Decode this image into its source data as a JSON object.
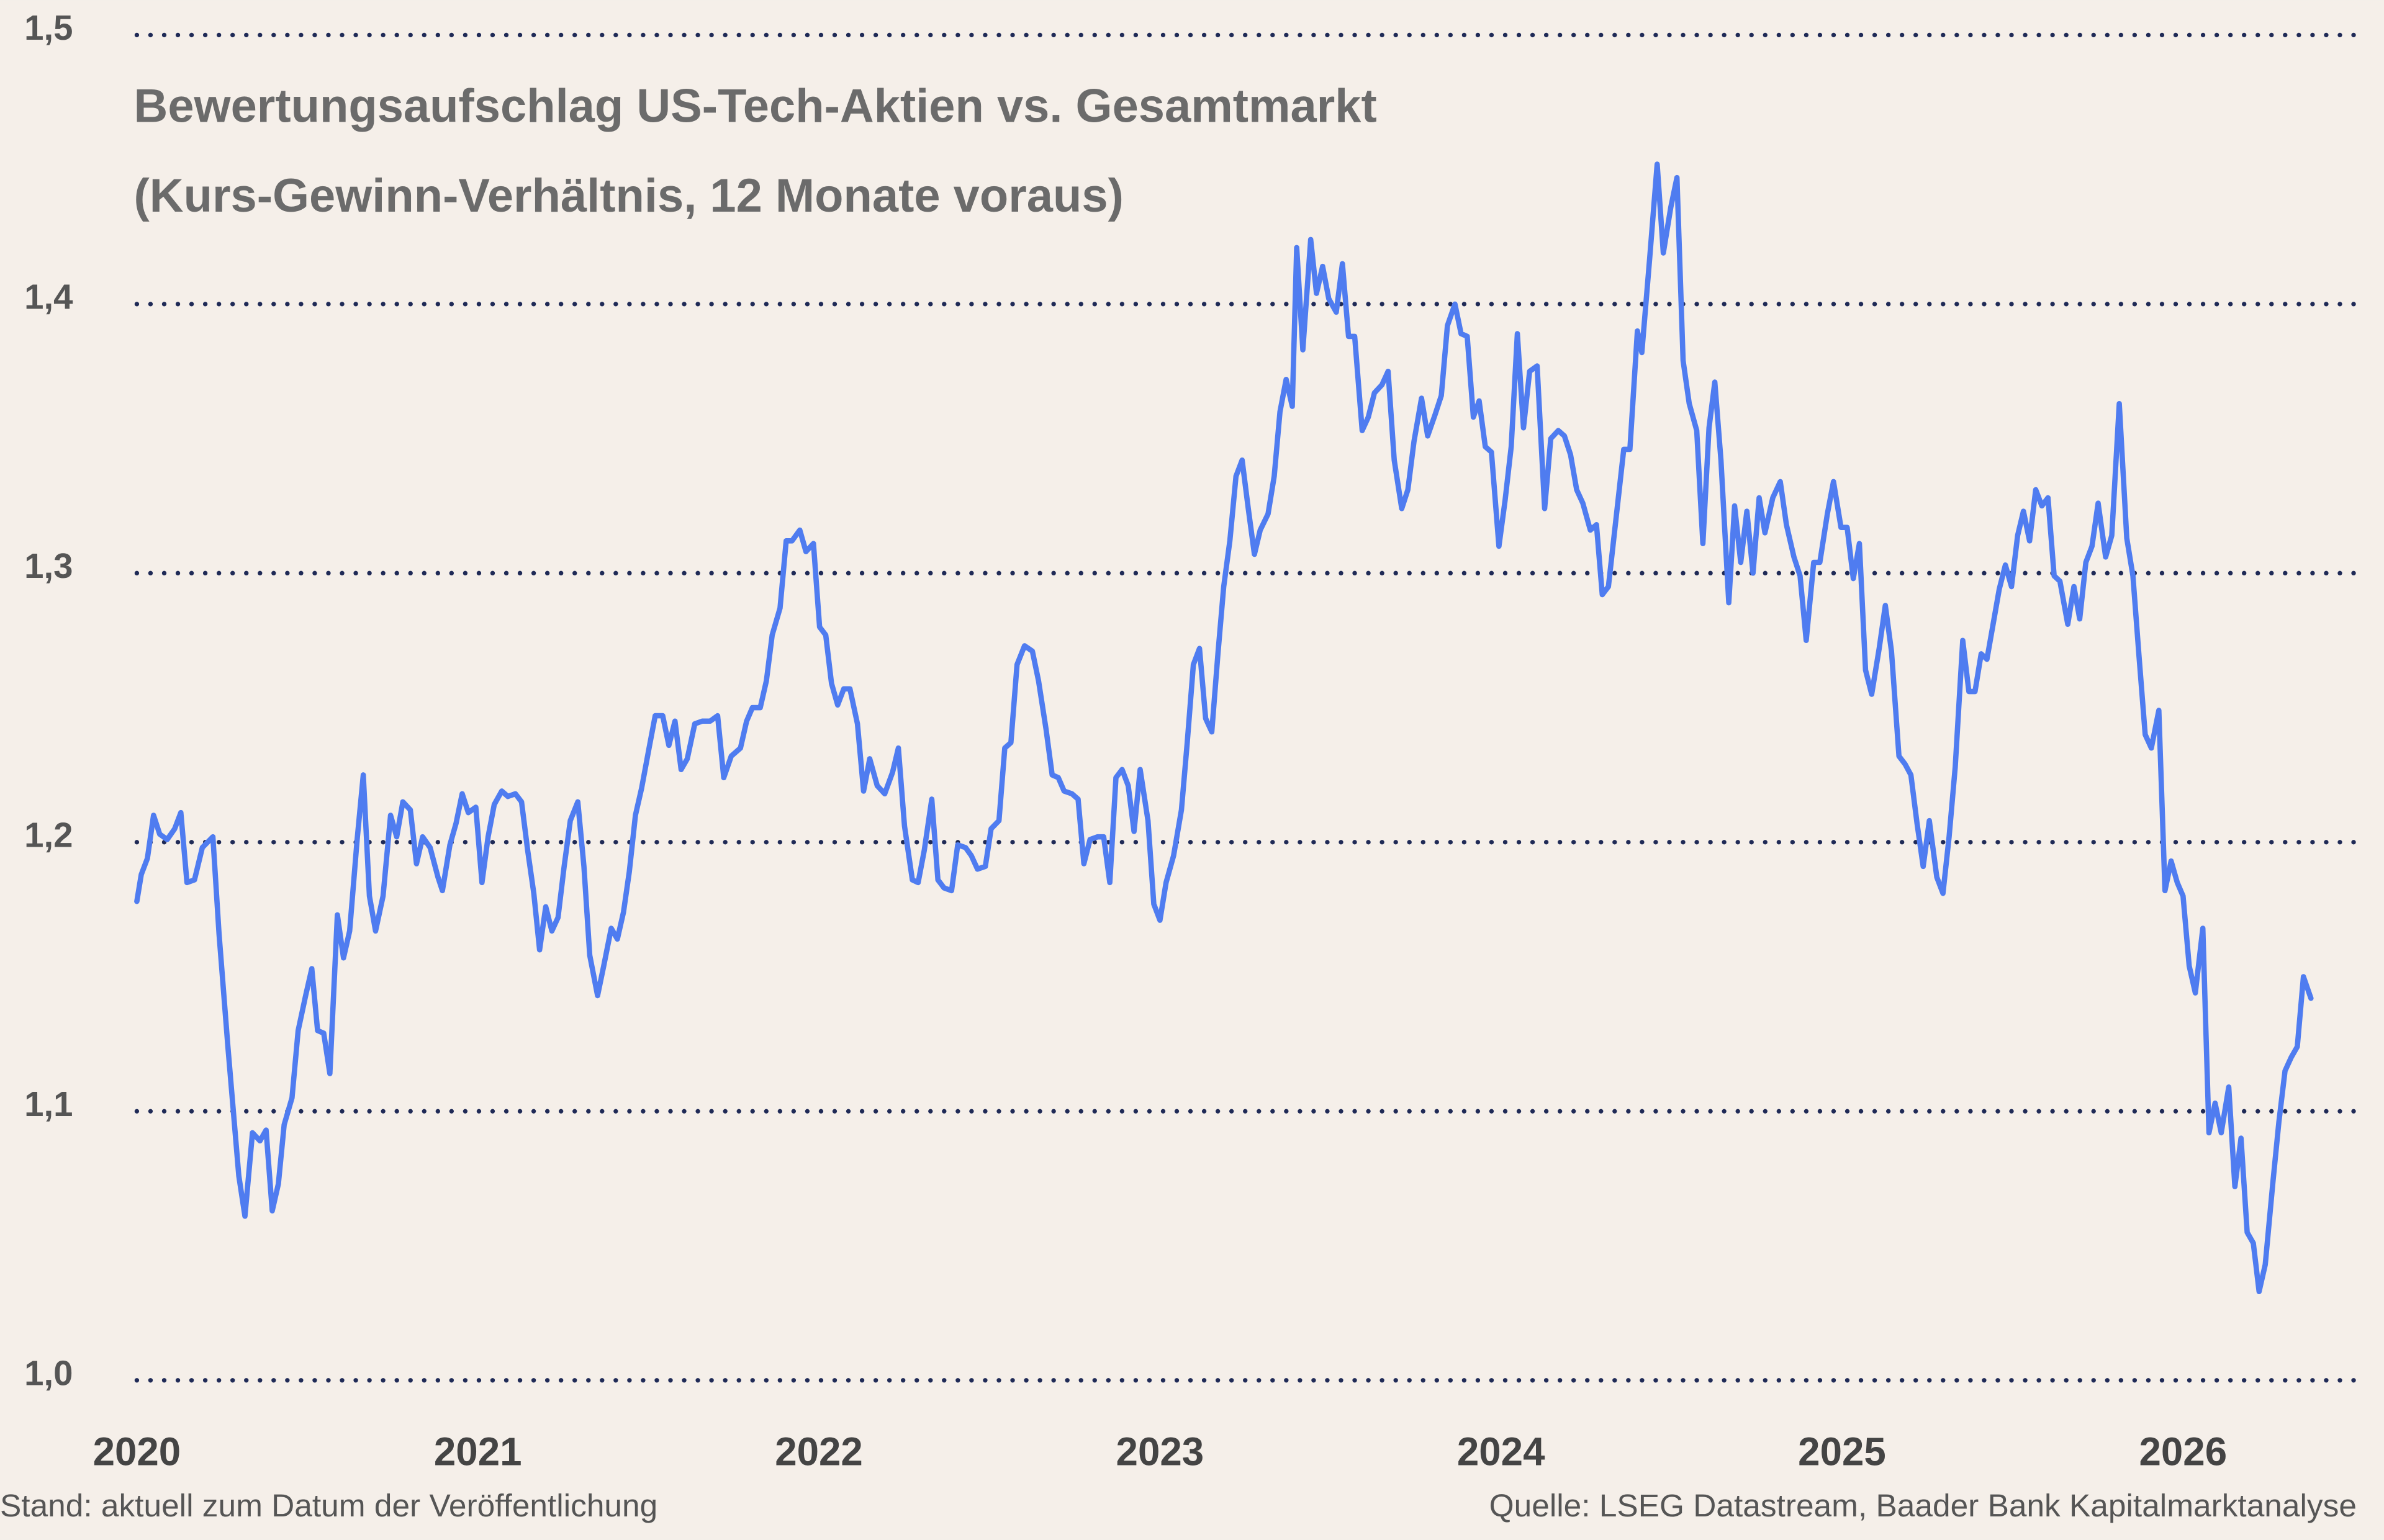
{
  "chart_data": {
    "type": "line",
    "title": "Bewertungsaufschlag US-Tech-Aktien vs. Gesamtmarkt",
    "subtitle": "(Kurs-Gewinn-Verhältnis, 12 Monate voraus)",
    "note": "Stand: aktuell zum Datum der Veröffentlichung",
    "source": "Quelle: LSEG Datastream, Baader Bank Kapitalmarktanalyse",
    "color": "#4f7cf0",
    "grid": true,
    "xlim": [
      2020,
      2026.509
    ],
    "xticks": [
      2020,
      2021,
      2022,
      2023,
      2024,
      2025,
      2026
    ],
    "ylim": [
      1,
      1.5
    ],
    "yticks": [
      {
        "value": 1.0,
        "label": "1,0"
      },
      {
        "value": 1.1,
        "label": "1,1"
      },
      {
        "value": 1.2,
        "label": "1,2"
      },
      {
        "value": 1.3,
        "label": "1,3"
      },
      {
        "value": 1.4,
        "label": "1,4"
      },
      {
        "value": 1.5,
        "label": "1,5"
      }
    ],
    "x": [
      2020,
      2020.013,
      2020.031,
      2020.049,
      2020.067,
      2020.089,
      2020.111,
      2020.129,
      2020.147,
      2020.169,
      2020.192,
      2020.223,
      2020.241,
      2020.267,
      2020.299,
      2020.317,
      2020.339,
      2020.361,
      2020.379,
      2020.397,
      2020.415,
      2020.432,
      2020.455,
      2020.473,
      2020.495,
      2020.513,
      2020.53,
      2020.548,
      2020.566,
      2020.588,
      2020.606,
      2020.624,
      2020.646,
      2020.664,
      2020.682,
      2020.7,
      2020.722,
      2020.744,
      2020.762,
      2020.78,
      2020.802,
      2020.82,
      2020.838,
      2020.86,
      2020.883,
      2020.896,
      2020.918,
      2020.936,
      2020.954,
      2020.972,
      2020.994,
      2021.012,
      2021.03,
      2021.048,
      2021.07,
      2021.088,
      2021.11,
      2021.128,
      2021.146,
      2021.164,
      2021.181,
      2021.199,
      2021.217,
      2021.235,
      2021.253,
      2021.271,
      2021.293,
      2021.311,
      2021.328,
      2021.351,
      2021.369,
      2021.391,
      2021.409,
      2021.427,
      2021.444,
      2021.462,
      2021.48,
      2021.502,
      2021.52,
      2021.542,
      2021.56,
      2021.578,
      2021.596,
      2021.614,
      2021.636,
      2021.658,
      2021.681,
      2021.703,
      2021.721,
      2021.743,
      2021.77,
      2021.788,
      2021.805,
      2021.828,
      2021.846,
      2021.863,
      2021.886,
      2021.904,
      2021.921,
      2021.944,
      2021.962,
      2021.984,
      2022.002,
      2022.02,
      2022.037,
      2022.055,
      2022.073,
      2022.091,
      2022.113,
      2022.131,
      2022.149,
      2022.171,
      2022.193,
      2022.216,
      2022.233,
      2022.251,
      2022.274,
      2022.291,
      2022.309,
      2022.331,
      2022.349,
      2022.367,
      2022.389,
      2022.407,
      2022.43,
      2022.447,
      2022.465,
      2022.488,
      2022.505,
      2022.528,
      2022.545,
      2022.563,
      2022.581,
      2022.603,
      2022.626,
      2022.644,
      2022.666,
      2022.684,
      2022.702,
      2022.719,
      2022.742,
      2022.76,
      2022.777,
      2022.795,
      2022.817,
      2022.835,
      2022.853,
      2022.871,
      2022.889,
      2022.907,
      2022.924,
      2022.942,
      2022.965,
      2022.982,
      2023,
      2023.018,
      2023.04,
      2023.063,
      2023.08,
      2023.098,
      2023.116,
      2023.134,
      2023.152,
      2023.17,
      2023.187,
      2023.205,
      2023.223,
      2023.241,
      2023.259,
      2023.277,
      2023.294,
      2023.317,
      2023.335,
      2023.352,
      2023.37,
      2023.388,
      2023.401,
      2023.419,
      2023.442,
      2023.459,
      2023.477,
      2023.495,
      2023.517,
      2023.535,
      2023.553,
      2023.571,
      2023.593,
      2023.611,
      2023.629,
      2023.651,
      2023.669,
      2023.687,
      2023.709,
      2023.727,
      2023.745,
      2023.767,
      2023.785,
      2023.807,
      2023.825,
      2023.843,
      2023.865,
      2023.883,
      2023.901,
      2023.919,
      2023.936,
      2023.954,
      2023.972,
      2023.994,
      2024.012,
      2024.03,
      2024.048,
      2024.066,
      2024.084,
      2024.106,
      2024.128,
      2024.146,
      2024.168,
      2024.186,
      2024.204,
      2024.222,
      2024.24,
      2024.262,
      2024.28,
      2024.297,
      2024.315,
      2024.338,
      2024.36,
      2024.378,
      2024.4,
      2024.413,
      2024.436,
      2024.458,
      2024.476,
      2024.498,
      2024.516,
      2024.534,
      2024.552,
      2024.574,
      2024.592,
      2024.61,
      2024.627,
      2024.645,
      2024.668,
      2024.685,
      2024.703,
      2024.721,
      2024.739,
      2024.757,
      2024.774,
      2024.797,
      2024.819,
      2024.837,
      2024.859,
      2024.877,
      2024.895,
      2024.917,
      2024.935,
      2024.957,
      2024.975,
      2024.997,
      2025.015,
      2025.033,
      2025.051,
      2025.069,
      2025.087,
      2025.109,
      2025.127,
      2025.145,
      2025.167,
      2025.185,
      2025.202,
      2025.22,
      2025.238,
      2025.256,
      2025.278,
      2025.296,
      2025.314,
      2025.332,
      2025.354,
      2025.372,
      2025.39,
      2025.408,
      2025.425,
      2025.443,
      2025.461,
      2025.479,
      2025.497,
      2025.515,
      2025.532,
      2025.55,
      2025.568,
      2025.586,
      2025.604,
      2025.622,
      2025.639,
      2025.662,
      2025.68,
      2025.697,
      2025.715,
      2025.733,
      2025.751,
      2025.773,
      2025.791,
      2025.813,
      2025.835,
      2025.853,
      2025.871,
      2025.889,
      2025.907,
      2025.929,
      2025.947,
      2025.965,
      2025.983,
      2026,
      2026.018,
      2026.036,
      2026.058,
      2026.076,
      2026.094,
      2026.112,
      2026.134,
      2026.152,
      2026.17,
      2026.188,
      2026.206,
      2026.223,
      2026.241,
      2026.263,
      2026.281,
      2026.299,
      2026.317,
      2026.335,
      2026.353,
      2026.375
    ],
    "values": [
      1.178,
      1.188,
      1.194,
      1.21,
      1.203,
      1.201,
      1.205,
      1.211,
      1.185,
      1.186,
      1.198,
      1.202,
      1.166,
      1.124,
      1.076,
      1.061,
      1.092,
      1.089,
      1.093,
      1.063,
      1.073,
      1.095,
      1.105,
      1.13,
      1.143,
      1.153,
      1.13,
      1.129,
      1.114,
      1.173,
      1.157,
      1.167,
      1.201,
      1.225,
      1.18,
      1.167,
      1.18,
      1.21,
      1.202,
      1.215,
      1.212,
      1.192,
      1.202,
      1.198,
      1.187,
      1.182,
      1.199,
      1.207,
      1.218,
      1.211,
      1.213,
      1.185,
      1.202,
      1.214,
      1.219,
      1.217,
      1.218,
      1.215,
      1.197,
      1.181,
      1.16,
      1.176,
      1.167,
      1.172,
      1.191,
      1.208,
      1.215,
      1.191,
      1.158,
      1.143,
      1.154,
      1.168,
      1.164,
      1.174,
      1.189,
      1.21,
      1.22,
      1.235,
      1.247,
      1.247,
      1.236,
      1.245,
      1.227,
      1.231,
      1.244,
      1.245,
      1.245,
      1.247,
      1.224,
      1.232,
      1.235,
      1.245,
      1.25,
      1.25,
      1.26,
      1.277,
      1.287,
      1.312,
      1.312,
      1.316,
      1.308,
      1.311,
      1.28,
      1.277,
      1.259,
      1.251,
      1.257,
      1.257,
      1.244,
      1.219,
      1.231,
      1.221,
      1.218,
      1.226,
      1.235,
      1.206,
      1.186,
      1.185,
      1.197,
      1.216,
      1.186,
      1.183,
      1.182,
      1.199,
      1.198,
      1.195,
      1.19,
      1.191,
      1.205,
      1.208,
      1.235,
      1.237,
      1.266,
      1.273,
      1.271,
      1.26,
      1.242,
      1.225,
      1.224,
      1.219,
      1.218,
      1.216,
      1.192,
      1.201,
      1.202,
      1.202,
      1.185,
      1.224,
      1.227,
      1.221,
      1.204,
      1.227,
      1.208,
      1.177,
      1.171,
      1.185,
      1.195,
      1.212,
      1.237,
      1.266,
      1.272,
      1.246,
      1.241,
      1.27,
      1.295,
      1.312,
      1.336,
      1.342,
      1.324,
      1.307,
      1.316,
      1.322,
      1.336,
      1.36,
      1.372,
      1.362,
      1.421,
      1.383,
      1.424,
      1.404,
      1.414,
      1.402,
      1.397,
      1.415,
      1.388,
      1.388,
      1.353,
      1.358,
      1.367,
      1.37,
      1.375,
      1.342,
      1.324,
      1.331,
      1.349,
      1.365,
      1.351,
      1.359,
      1.366,
      1.392,
      1.4,
      1.389,
      1.388,
      1.358,
      1.364,
      1.347,
      1.345,
      1.31,
      1.327,
      1.347,
      1.389,
      1.354,
      1.375,
      1.377,
      1.324,
      1.35,
      1.353,
      1.351,
      1.344,
      1.331,
      1.326,
      1.316,
      1.318,
      1.292,
      1.295,
      1.321,
      1.346,
      1.346,
      1.39,
      1.382,
      1.417,
      1.452,
      1.419,
      1.436,
      1.447,
      1.379,
      1.363,
      1.353,
      1.311,
      1.354,
      1.371,
      1.342,
      1.289,
      1.325,
      1.304,
      1.323,
      1.3,
      1.328,
      1.315,
      1.328,
      1.334,
      1.318,
      1.306,
      1.299,
      1.275,
      1.304,
      1.304,
      1.322,
      1.334,
      1.317,
      1.317,
      1.298,
      1.311,
      1.264,
      1.255,
      1.272,
      1.288,
      1.271,
      1.232,
      1.229,
      1.225,
      1.207,
      1.191,
      1.208,
      1.187,
      1.181,
      1.202,
      1.228,
      1.275,
      1.256,
      1.256,
      1.27,
      1.268,
      1.281,
      1.294,
      1.303,
      1.295,
      1.314,
      1.323,
      1.312,
      1.331,
      1.325,
      1.328,
      1.299,
      1.297,
      1.281,
      1.295,
      1.283,
      1.304,
      1.31,
      1.326,
      1.306,
      1.314,
      1.363,
      1.313,
      1.299,
      1.269,
      1.24,
      1.235,
      1.249,
      1.182,
      1.193,
      1.185,
      1.18,
      1.154,
      1.144,
      1.168,
      1.092,
      1.103,
      1.092,
      1.109,
      1.072,
      1.09,
      1.055,
      1.051,
      1.033,
      1.043,
      1.073,
      1.096,
      1.115,
      1.12,
      1.124,
      1.15,
      1.142
    ]
  }
}
